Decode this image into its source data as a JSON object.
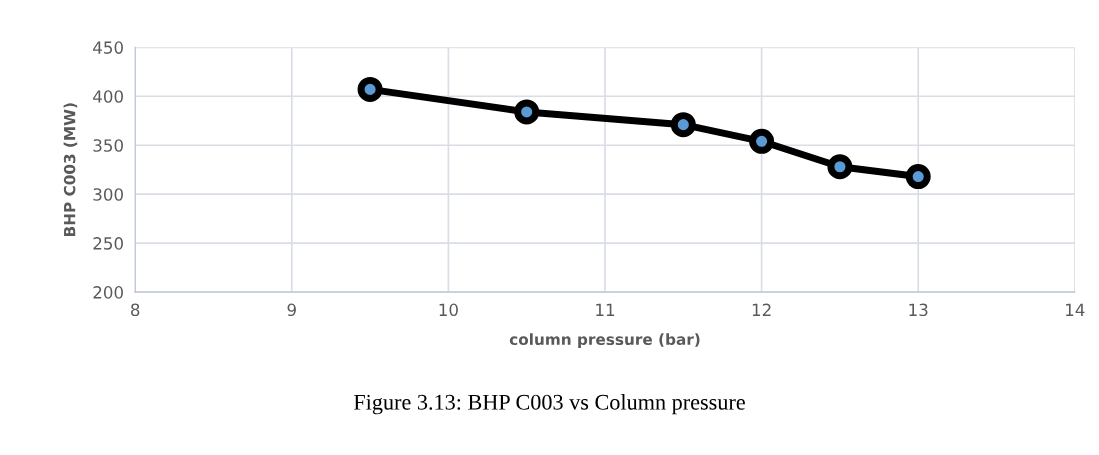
{
  "chart_data": {
    "type": "line",
    "xlabel": "column pressure (bar)",
    "ylabel": "BHP C003 (MW)",
    "x": [
      9.5,
      10.5,
      11.5,
      12,
      12.5,
      13
    ],
    "series": [
      {
        "color": "#000000",
        "values": [
          407,
          384,
          371,
          354,
          328,
          318
        ]
      }
    ],
    "xlim": [
      8,
      14
    ],
    "xticks": [
      8,
      9,
      10,
      11,
      12,
      13,
      14
    ],
    "ylim": [
      200,
      450
    ],
    "yticks": [
      200,
      250,
      300,
      350,
      400,
      450
    ],
    "grid": true,
    "marker": "circle",
    "line_style": "solid",
    "annotations": [
      "Figure 3.13: BHP C003 vs Column pressure"
    ]
  }
}
